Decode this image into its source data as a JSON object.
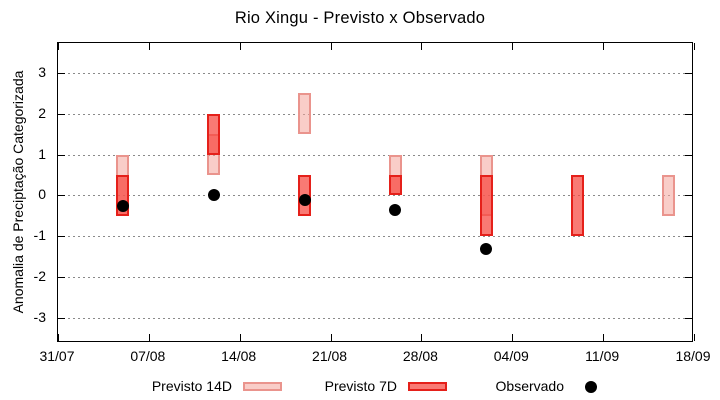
{
  "title": "Rio Xingu - Previsto x Observado",
  "legend": {
    "previsto_14d": "Previsto 14D",
    "previsto_7d": "Previsto 7D",
    "observado": "Observado"
  },
  "colors": {
    "previsto_14d_fill": "rgba(244,164,155,0.55)",
    "previsto_14d_border": "#ea948d",
    "previsto_7d_fill": "rgba(246,70,62,0.72)",
    "previsto_7d_border": "#e5201a",
    "observado": "#000000",
    "grid": "#8a8a8a",
    "axis": "#000000",
    "background": "#ffffff"
  },
  "chart_data": {
    "type": "range-bar+scatter",
    "title": "Rio Xingu - Previsto x Observado",
    "xlabel": "",
    "ylabel": "Anomalia de Preciptação Categorizada",
    "ylim": [
      -3.6,
      3.73
    ],
    "grid": "horizontal dotted lines at integer y values",
    "legend_position": "bottom",
    "y_ticks": [
      3,
      2,
      1,
      0,
      -1,
      -2,
      -3
    ],
    "x_ticks": [
      {
        "label": "31/07",
        "day": 0
      },
      {
        "label": "07/08",
        "day": 7
      },
      {
        "label": "14/08",
        "day": 14
      },
      {
        "label": "21/08",
        "day": 21
      },
      {
        "label": "28/08",
        "day": 28
      },
      {
        "label": "04/09",
        "day": 35
      },
      {
        "label": "11/09",
        "day": 42
      },
      {
        "label": "18/09",
        "day": 49
      }
    ],
    "series": [
      {
        "name": "Previsto 14D",
        "type": "range-bar"
      },
      {
        "name": "Previsto 7D",
        "type": "range-bar"
      },
      {
        "name": "Observado",
        "type": "scatter"
      }
    ],
    "clusters": [
      {
        "date": "05/08",
        "day": 5,
        "previsto_14d": [
          -0.5,
          1.0
        ],
        "previsto_7d": [
          -0.5,
          0.5
        ],
        "observado": -0.25
      },
      {
        "date": "12/08",
        "day": 12,
        "previsto_14d": [
          0.5,
          1.5
        ],
        "previsto_7d": [
          1.0,
          2.0
        ],
        "observado": 0.0
      },
      {
        "date": "19/08",
        "day": 19,
        "previsto_14d": [
          1.5,
          2.5
        ],
        "previsto_7d": [
          -0.5,
          0.5
        ],
        "observado": -0.1
      },
      {
        "date": "26/08",
        "day": 26,
        "previsto_14d": [
          0.0,
          1.0
        ],
        "previsto_7d": [
          0.0,
          0.5
        ],
        "observado": -0.35
      },
      {
        "date": "02/09",
        "day": 33,
        "previsto_14d": [
          -0.5,
          1.0
        ],
        "previsto_7d": [
          -1.0,
          0.5
        ],
        "observado": -1.3
      },
      {
        "date": "09/09",
        "day": 40,
        "previsto_14d": null,
        "previsto_7d": [
          -1.0,
          0.5
        ],
        "observado": null
      },
      {
        "date": "16/09",
        "day": 47,
        "previsto_14d": [
          -0.5,
          0.5
        ],
        "previsto_7d": null,
        "observado": null
      }
    ]
  }
}
